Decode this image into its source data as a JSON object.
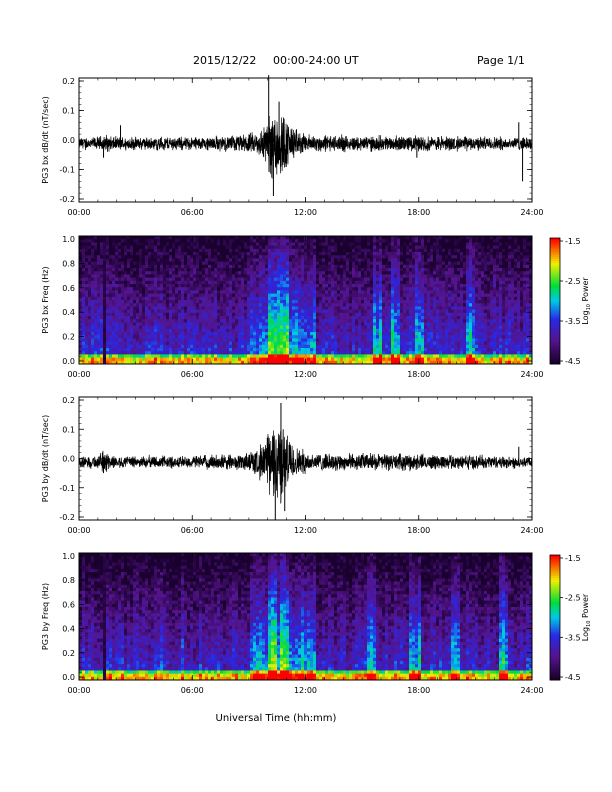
{
  "header": {
    "date": "2015/12/22",
    "range": "00:00-24:00 UT",
    "page": "Page 1/1"
  },
  "xaxis": {
    "label": "Universal Time (hh:mm)",
    "ticks": [
      "00:00",
      "06:00",
      "12:00",
      "18:00",
      "24:00"
    ]
  },
  "colorbar": {
    "ticks": [
      "-1.5",
      "-2.5",
      "-3.5",
      "-4.5"
    ],
    "label_prefix": "Log",
    "label_sub": "10",
    "label_suffix": " Power"
  },
  "chart_data": [
    {
      "type": "line",
      "title": "",
      "xlabel": "Universal Time (hh:mm)",
      "ylabel": "PG3 bx dB/dt (nT/sec)",
      "xlim": [
        0,
        24
      ],
      "ylim": [
        -0.2,
        0.2
      ],
      "yticks": [
        "0.2",
        "0.1",
        "0.0",
        "-0.1",
        "-0.2"
      ],
      "background_amplitude": 0.012,
      "envelope": [
        {
          "x": 0.0,
          "a": 0.022
        },
        {
          "x": 1.0,
          "a": 0.022
        },
        {
          "x": 1.4,
          "a": 0.03
        },
        {
          "x": 2.0,
          "a": 0.022
        },
        {
          "x": 4.0,
          "a": 0.022
        },
        {
          "x": 6.0,
          "a": 0.024
        },
        {
          "x": 8.0,
          "a": 0.026
        },
        {
          "x": 9.5,
          "a": 0.04
        },
        {
          "x": 10.0,
          "a": 0.09
        },
        {
          "x": 10.4,
          "a": 0.15
        },
        {
          "x": 10.8,
          "a": 0.11
        },
        {
          "x": 11.3,
          "a": 0.06
        },
        {
          "x": 12.0,
          "a": 0.03
        },
        {
          "x": 15.0,
          "a": 0.026
        },
        {
          "x": 18.0,
          "a": 0.026
        },
        {
          "x": 22.0,
          "a": 0.022
        },
        {
          "x": 24.0,
          "a": 0.022
        }
      ],
      "spikes": [
        {
          "x": 10.05,
          "y": 0.22
        },
        {
          "x": 10.3,
          "y": -0.19
        },
        {
          "x": 10.6,
          "y": 0.13
        },
        {
          "x": 2.2,
          "y": 0.05
        },
        {
          "x": 1.3,
          "y": -0.06
        },
        {
          "x": 23.3,
          "y": 0.06
        },
        {
          "x": 23.5,
          "y": -0.14
        },
        {
          "x": 17.9,
          "y": -0.06
        }
      ]
    },
    {
      "type": "heatmap",
      "title": "",
      "xlabel": "Universal Time (hh:mm)",
      "ylabel": "PG3 bx Freq (Hz)",
      "xlim": [
        0,
        24
      ],
      "ylim": [
        0.0,
        1.0
      ],
      "yticks": [
        "1.0",
        "0.8",
        "0.6",
        "0.4",
        "0.2",
        "0.0"
      ],
      "zlabel": "Log10 Power",
      "zlim": [
        -4.5,
        -1.5
      ],
      "dark_columns_hours": [
        1.2,
        1.5
      ],
      "active_hours": [
        9.0,
        12.5
      ],
      "bursts_hours": [
        10.2,
        10.8,
        15.8,
        16.8,
        18.0,
        20.7
      ]
    },
    {
      "type": "line",
      "title": "",
      "xlabel": "Universal Time (hh:mm)",
      "ylabel": "PG3 by dB/dt (nT/sec)",
      "xlim": [
        0,
        24
      ],
      "ylim": [
        -0.2,
        0.2
      ],
      "yticks": [
        "0.2",
        "0.1",
        "0.0",
        "-0.1",
        "-0.2"
      ],
      "background_amplitude": 0.012,
      "envelope": [
        {
          "x": 0.0,
          "a": 0.02
        },
        {
          "x": 1.0,
          "a": 0.022
        },
        {
          "x": 1.3,
          "a": 0.04
        },
        {
          "x": 2.0,
          "a": 0.02
        },
        {
          "x": 6.0,
          "a": 0.022
        },
        {
          "x": 8.5,
          "a": 0.028
        },
        {
          "x": 9.5,
          "a": 0.05
        },
        {
          "x": 10.2,
          "a": 0.12
        },
        {
          "x": 10.5,
          "a": 0.17
        },
        {
          "x": 11.0,
          "a": 0.1
        },
        {
          "x": 11.5,
          "a": 0.05
        },
        {
          "x": 12.5,
          "a": 0.03
        },
        {
          "x": 17.5,
          "a": 0.028
        },
        {
          "x": 22.0,
          "a": 0.022
        },
        {
          "x": 24.0,
          "a": 0.02
        }
      ],
      "spikes": [
        {
          "x": 10.7,
          "y": 0.19
        },
        {
          "x": 10.4,
          "y": -0.21
        },
        {
          "x": 10.9,
          "y": -0.18
        },
        {
          "x": 1.3,
          "y": -0.05
        },
        {
          "x": 23.3,
          "y": 0.04
        },
        {
          "x": 23.0,
          "y": -0.03
        }
      ]
    },
    {
      "type": "heatmap",
      "title": "",
      "xlabel": "Universal Time (hh:mm)",
      "ylabel": "PG3 by Freq (Hz)",
      "xlim": [
        0,
        24
      ],
      "ylim": [
        0.0,
        1.0
      ],
      "yticks": [
        "1.0",
        "0.8",
        "0.6",
        "0.4",
        "0.2",
        "0.0"
      ],
      "zlabel": "Log10 Power",
      "zlim": [
        -4.5,
        -1.5
      ],
      "dark_columns_hours": [
        1.2,
        1.5
      ],
      "active_hours": [
        9.0,
        12.5
      ],
      "bursts_hours": [
        10.3,
        10.9,
        15.5,
        17.8,
        20.0,
        22.5
      ]
    }
  ]
}
